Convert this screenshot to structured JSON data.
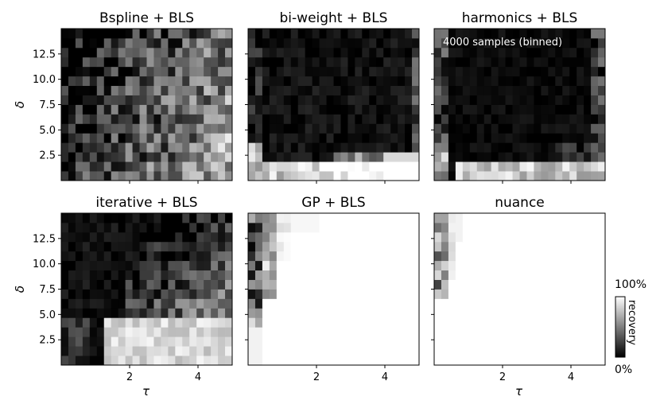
{
  "chart_data": {
    "type": "heatmap",
    "grid": {
      "columns": 24,
      "rows": 16
    },
    "tau_range": [
      0,
      5
    ],
    "delta_range": [
      0,
      15
    ],
    "x_ticks": [
      2,
      4
    ],
    "y_ticks": [
      "2.5",
      "5.0",
      "7.5",
      "10.0",
      "12.5"
    ],
    "xlabel": "τ",
    "ylabel": "δ",
    "colorbar": {
      "label": "recovery",
      "max_label": "100%",
      "min_label": "0%",
      "colormap": "black-to-white"
    },
    "annotation": "4000 samples (binned)",
    "panels": [
      {
        "title": "Bspline + BLS",
        "model": "bspline"
      },
      {
        "title": "bi-weight + BLS",
        "model": "biweight"
      },
      {
        "title": "harmonics + BLS",
        "model": "harmonics"
      },
      {
        "title": "iterative + BLS",
        "model": "iterative"
      },
      {
        "title": "GP + BLS",
        "model": "gp"
      },
      {
        "title": "nuance",
        "model": "nuance"
      }
    ]
  }
}
